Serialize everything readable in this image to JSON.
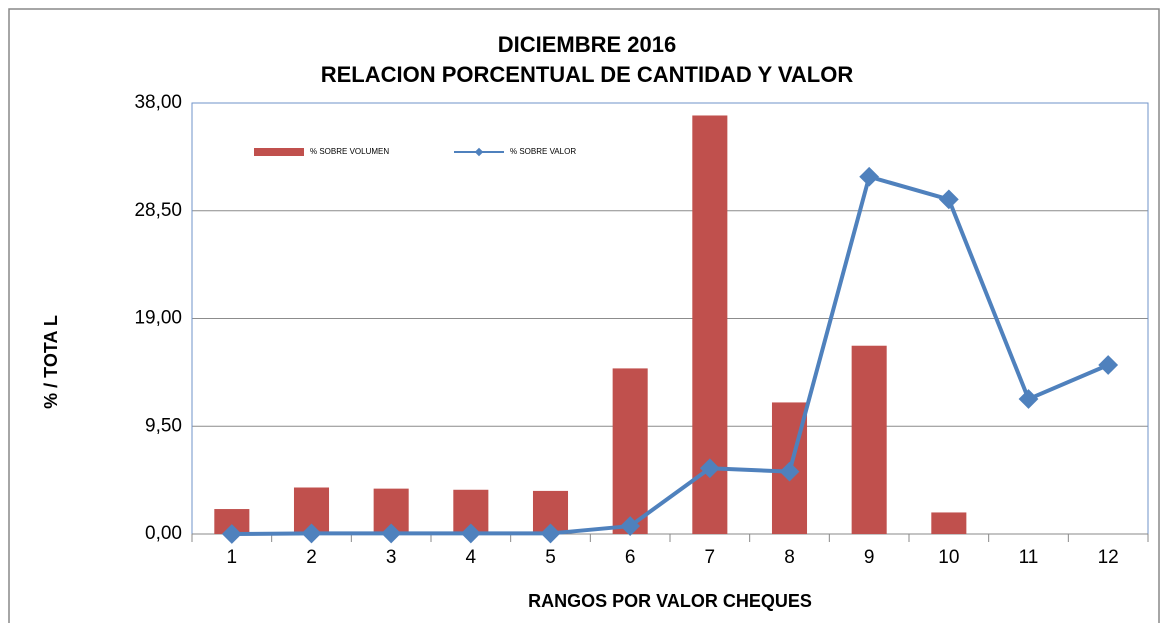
{
  "chart_data": {
    "type": "bar",
    "title": "DICIEMBRE  2016",
    "subtitle": "RELACION PORCENTUAL DE CANTIDAD Y VALOR",
    "x_label": "RANGOS POR VALOR CHEQUES",
    "y_label": "%  /   TOTA L",
    "categories": [
      "1",
      "2",
      "3",
      "4",
      "5",
      "6",
      "7",
      "8",
      "9",
      "10",
      "11",
      "12"
    ],
    "series": [
      {
        "name": "% SOBRE VOLUMEN",
        "type": "bar",
        "color": "#c0504d",
        "values": [
          2.2,
          4.1,
          4.0,
          3.9,
          3.8,
          14.6,
          36.9,
          11.6,
          16.6,
          1.9,
          0,
          0
        ]
      },
      {
        "name": "% SOBRE VALOR",
        "type": "line",
        "color": "#4f81bd",
        "values": [
          0.0,
          0.05,
          0.05,
          0.05,
          0.05,
          0.7,
          5.8,
          5.5,
          31.5,
          29.5,
          11.9,
          14.9
        ]
      }
    ],
    "ylim": [
      0,
      38
    ],
    "yticks": [
      {
        "value": 0,
        "label": "0,00"
      },
      {
        "value": 9.5,
        "label": "9,50"
      },
      {
        "value": 19,
        "label": "19,00"
      },
      {
        "value": 28.5,
        "label": "28,50"
      },
      {
        "value": 38,
        "label": "38,00"
      }
    ],
    "grid": true,
    "legend": "top-left"
  }
}
